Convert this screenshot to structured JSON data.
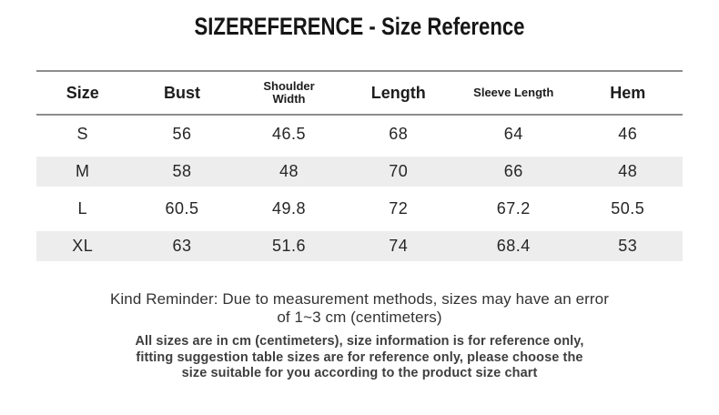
{
  "title": "SIZEREFERENCE - Size Reference",
  "table": {
    "columns": [
      "Size",
      "Bust",
      "Shoulder Width",
      "Length",
      "Sleeve Length",
      "Hem"
    ],
    "rows": [
      [
        "S",
        "56",
        "46.5",
        "68",
        "64",
        "46"
      ],
      [
        "M",
        "58",
        "48",
        "70",
        "66",
        "48"
      ],
      [
        "L",
        "60.5",
        "49.8",
        "72",
        "67.2",
        "50.5"
      ],
      [
        "XL",
        "63",
        "51.6",
        "74",
        "68.4",
        "53"
      ]
    ]
  },
  "notes": {
    "reminder": {
      "text": "Kind Reminder: Due to measurement methods, sizes may have an error of 1~3 cm (centimeters)",
      "lines": [
        "Kind Reminder: Due to measurement methods, sizes may have an error",
        "of 1~3 cm (centimeters)"
      ]
    },
    "disclaimer": {
      "text": "All sizes are in cm (centimeters), size information is for reference only, fitting suggestion table sizes are for reference only, please choose the size suitable for you according to the product size chart",
      "lines": [
        "All sizes are in cm (centimeters), size information is for reference only,",
        "fitting suggestion table sizes are for reference only, please choose the",
        "size suitable for you according to the product size chart"
      ]
    }
  },
  "colors": {
    "stripe": "#ededed",
    "rule": "#8d8d8d",
    "text": "#262626"
  }
}
